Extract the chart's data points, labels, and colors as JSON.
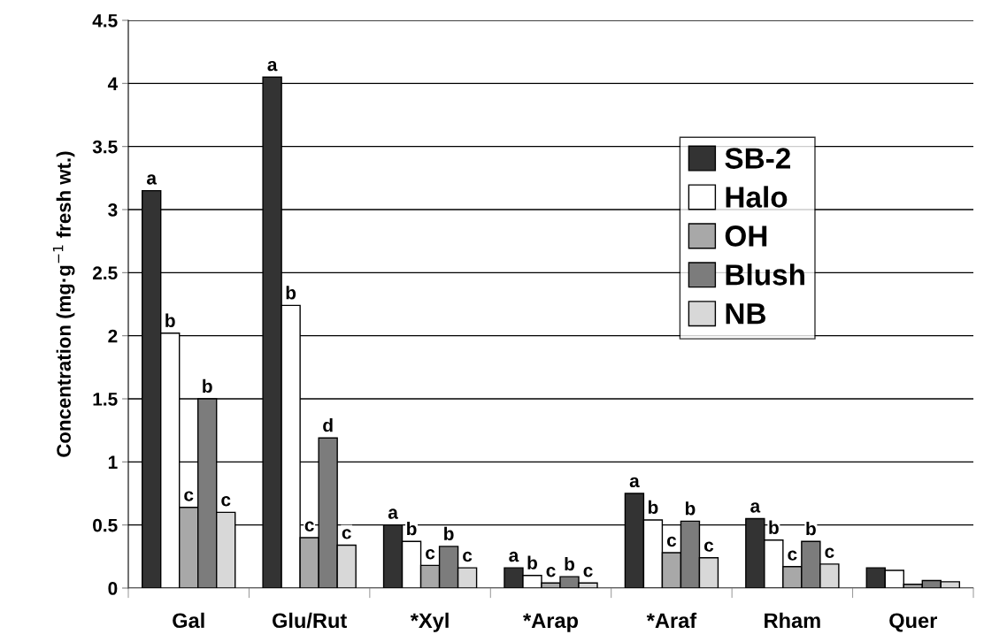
{
  "chart_data": {
    "type": "bar",
    "ylabel": "Concentration (mg·g$^{−1}$ fresh wt.)",
    "categories": [
      "Gal",
      "Glu/Rut",
      "*Xyl",
      "*Arap",
      "*Araf",
      "Rham",
      "Quer"
    ],
    "series": [
      {
        "name": "SB-2",
        "color": "#333333",
        "values": [
          3.15,
          4.05,
          0.5,
          0.16,
          0.75,
          0.55,
          0.16
        ],
        "value_labels": [
          "a",
          "a",
          "a",
          "a",
          "a",
          "a",
          null
        ]
      },
      {
        "name": "Halo",
        "color": "#ffffff",
        "values": [
          2.02,
          2.24,
          0.37,
          0.1,
          0.54,
          0.38,
          0.14
        ],
        "value_labels": [
          "b",
          "b",
          "b",
          "b",
          "b",
          "b",
          null
        ]
      },
      {
        "name": "OH",
        "color": "#a8a8a8",
        "values": [
          0.64,
          0.4,
          0.18,
          0.04,
          0.28,
          0.17,
          0.03
        ],
        "value_labels": [
          "c",
          "c",
          "c",
          "c",
          "c",
          "c",
          null
        ]
      },
      {
        "name": "Blush",
        "color": "#7c7c7c",
        "values": [
          1.5,
          1.19,
          0.33,
          0.09,
          0.53,
          0.37,
          0.06
        ],
        "value_labels": [
          "b",
          "d",
          "b",
          "b",
          "b",
          "b",
          null
        ]
      },
      {
        "name": "NB",
        "color": "#d8d8d8",
        "values": [
          0.6,
          0.34,
          0.16,
          0.04,
          0.24,
          0.19,
          0.05
        ],
        "value_labels": [
          "c",
          "c",
          "c",
          "c",
          "c",
          "c",
          null
        ]
      }
    ],
    "ylim": [
      0,
      4.5
    ],
    "yticks": [
      0,
      0.5,
      1,
      1.5,
      2,
      2.5,
      3,
      3.5,
      4,
      4.5
    ],
    "grid": "y",
    "legend": "top right"
  }
}
